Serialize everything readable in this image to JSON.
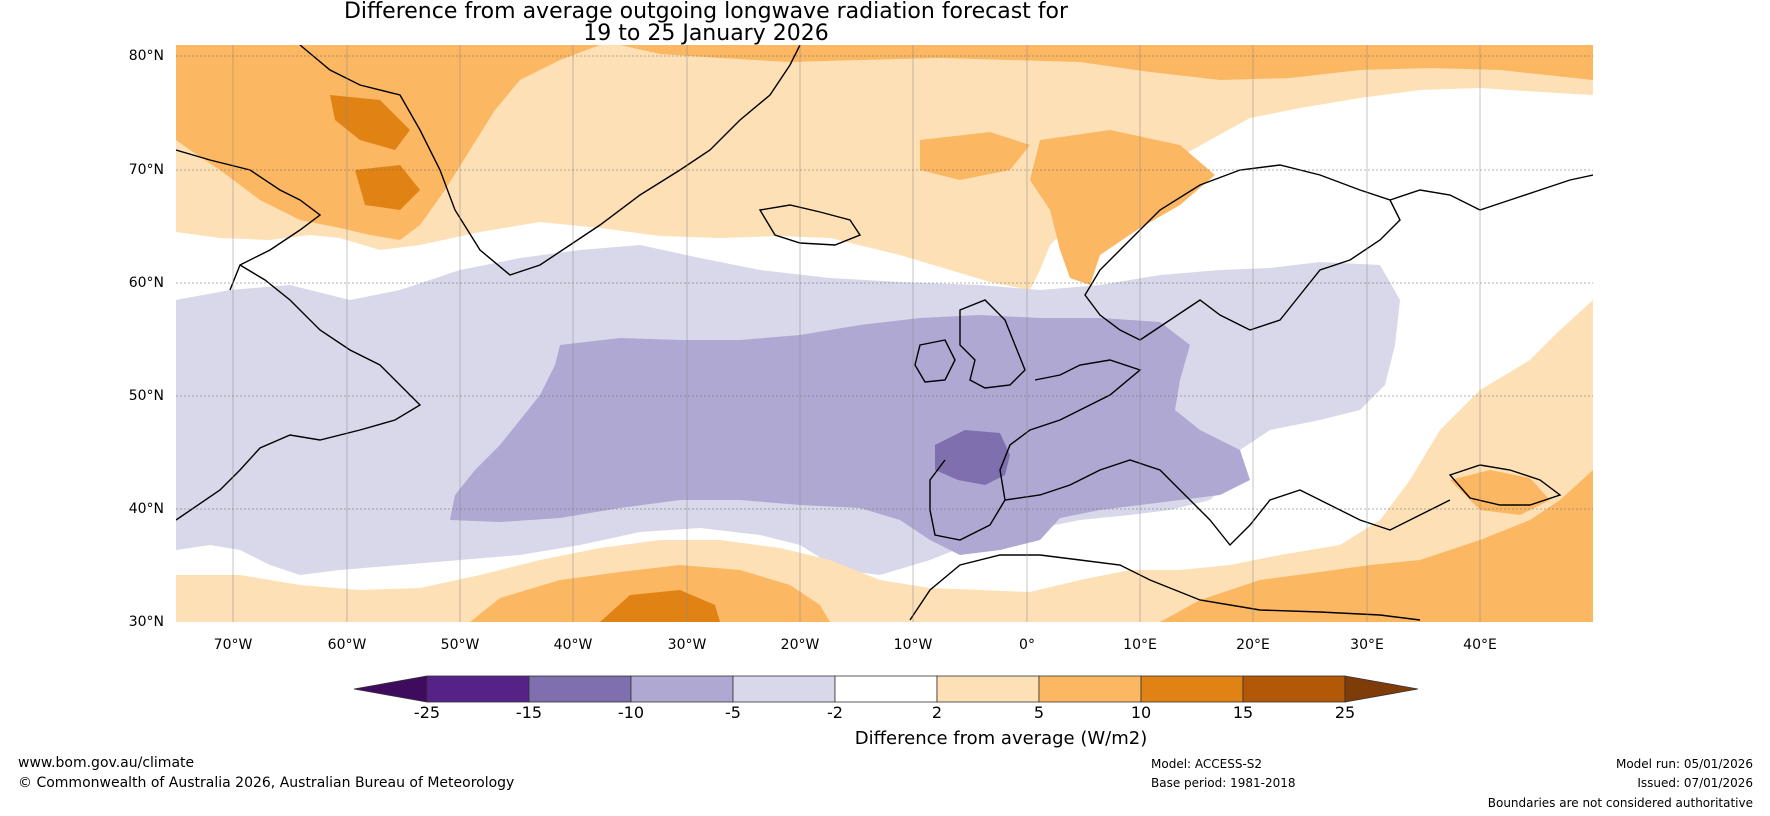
{
  "title": {
    "line1": "Difference from average outgoing longwave radiation forecast for",
    "line2": "19 to 25 January 2026"
  },
  "map": {
    "lat_labels": [
      "80°N",
      "70°N",
      "60°N",
      "50°N",
      "40°N",
      "30°N"
    ],
    "lon_labels": [
      "70°W",
      "60°W",
      "50°W",
      "40°W",
      "30°W",
      "20°W",
      "10°W",
      "0°",
      "10°E",
      "20°E",
      "30°E",
      "40°E"
    ],
    "extent": {
      "lon_min": -75,
      "lon_max": 50,
      "lat_min": 30,
      "lat_max": 81
    }
  },
  "colorbar": {
    "title": "Difference from average (W/m2)",
    "tick_labels": [
      "-25",
      "-15",
      "-10",
      "-5",
      "-2",
      "2",
      "5",
      "10",
      "15",
      "25"
    ],
    "colors": [
      "#3f0b5e",
      "#572288",
      "#7f6fae",
      "#aea8d2",
      "#d8d8ea",
      "#ffffff",
      "#fde0b5",
      "#fcb763",
      "#e08314",
      "#b35806",
      "#7f3b08"
    ]
  },
  "footer": {
    "website": "www.bom.gov.au/climate",
    "copyright": "© Commonwealth of Australia 2026, Australian Bureau of Meteorology",
    "model": "Model: ACCESS-S2",
    "base_period": "Base period: 1981-2018",
    "model_run": "Model run: 05/01/2026",
    "issued": "Issued: 07/01/2026",
    "boundaries": "Boundaries are not considered authoritative"
  }
}
